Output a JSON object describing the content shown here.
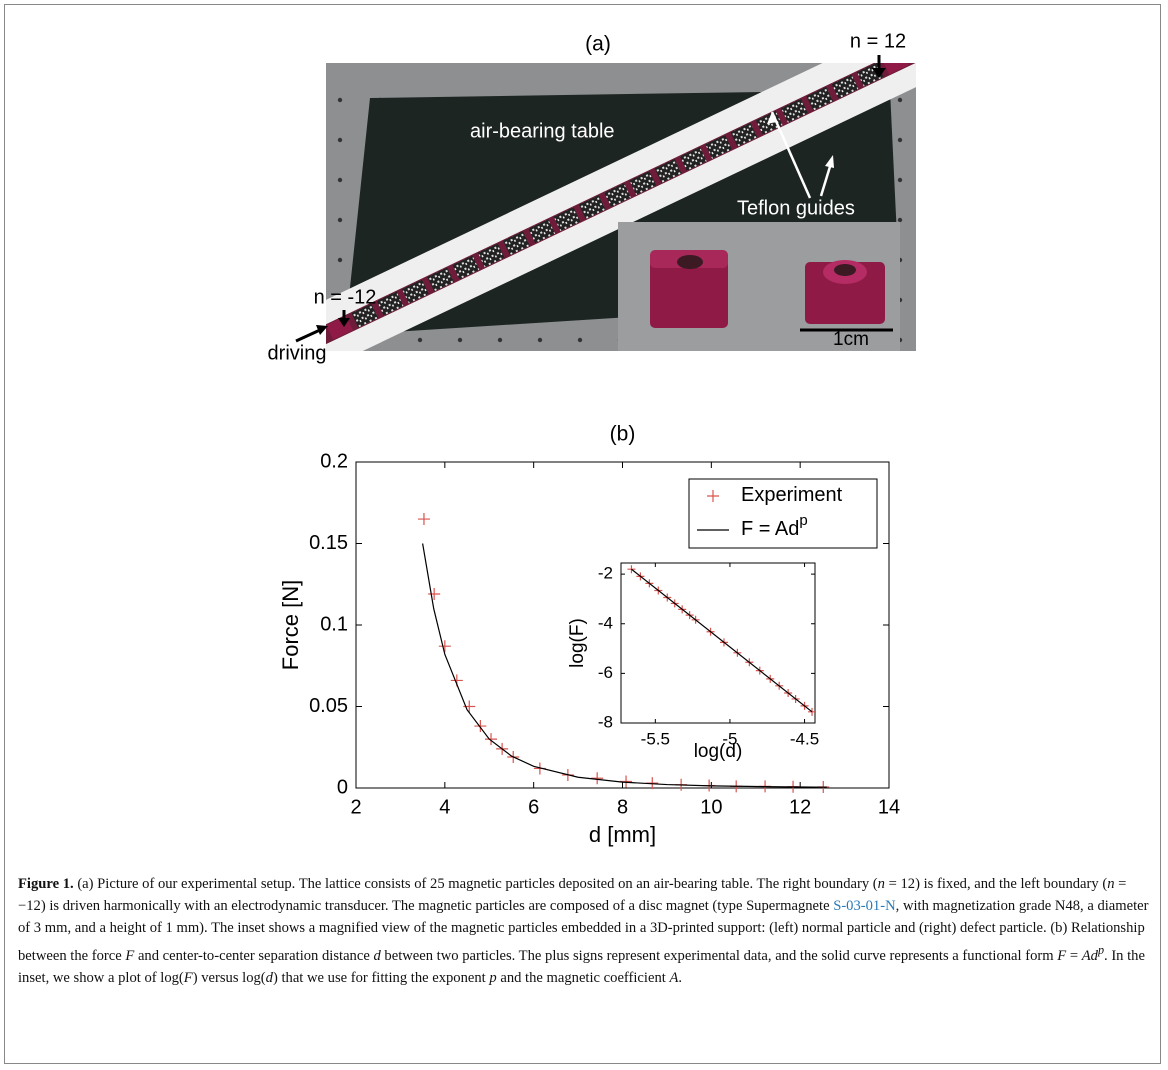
{
  "figure_a": {
    "title": "(a)",
    "labels": {
      "n_right": "n = 12",
      "table": "air-bearing table",
      "guides": "Teflon guides",
      "n_left": "n = -12",
      "driving": "driving",
      "scale": "1cm"
    }
  },
  "chart_data": [
    {
      "type": "scatter",
      "title": "(b)",
      "xlabel": "d [mm]",
      "ylabel": "Force [N]",
      "xlim": [
        2,
        14
      ],
      "xticks": [
        2,
        4,
        6,
        8,
        10,
        12,
        14
      ],
      "ylim": [
        0,
        0.2
      ],
      "yticks": [
        0,
        0.05,
        0.1,
        0.15,
        0.2
      ],
      "legend": "upper right",
      "series": [
        {
          "name": "Experiment",
          "style": "marker",
          "color": "#d9534f",
          "x": [
            3.53,
            3.76,
            4.0,
            4.27,
            4.55,
            4.8,
            5.04,
            5.29,
            5.54,
            6.14,
            6.77,
            7.43,
            8.08,
            8.67,
            9.32,
            9.95,
            10.56,
            11.21,
            11.84,
            12.52
          ],
          "values": [
            0.165,
            0.119,
            0.087,
            0.066,
            0.05,
            0.038,
            0.03,
            0.024,
            0.019,
            0.012,
            0.008,
            0.006,
            0.004,
            0.003,
            0.002,
            0.0015,
            0.001,
            0.001,
            0.0008,
            0.0006
          ]
        },
        {
          "name": "F = Ad",
          "name_superscript": "p",
          "style": "line",
          "color": "#000000",
          "x": [
            3.5,
            3.75,
            4,
            4.5,
            5,
            5.5,
            6,
            7,
            8,
            9,
            10,
            11,
            12,
            12.6
          ],
          "values": [
            0.15,
            0.11,
            0.082,
            0.048,
            0.03,
            0.0196,
            0.0133,
            0.0066,
            0.0036,
            0.0021,
            0.0013,
            0.0009,
            0.0006,
            0.0005
          ]
        }
      ]
    },
    {
      "type": "scatter",
      "xlabel": "log(d)",
      "ylabel": "log(F)",
      "xlim": [
        -5.73,
        -4.43
      ],
      "xticks": [
        -5.5,
        -5,
        -4.5
      ],
      "ylim": [
        -8,
        -1.55
      ],
      "yticks": [
        -2,
        -4,
        -6,
        -8
      ],
      "series": [
        {
          "style": "marker",
          "color": "#d9534f",
          "x": [
            -5.66,
            -5.6,
            -5.54,
            -5.48,
            -5.42,
            -5.37,
            -5.32,
            -5.27,
            -5.23,
            -5.13,
            -5.04,
            -4.95,
            -4.87,
            -4.8,
            -4.73,
            -4.67,
            -4.61,
            -4.56,
            -4.5,
            -4.45
          ],
          "values": [
            -1.8,
            -2.09,
            -2.37,
            -2.66,
            -2.94,
            -3.18,
            -3.42,
            -3.65,
            -3.84,
            -4.32,
            -4.75,
            -5.17,
            -5.55,
            -5.89,
            -6.22,
            -6.5,
            -6.79,
            -7.03,
            -7.31,
            -7.55
          ]
        },
        {
          "style": "line",
          "color": "#000000",
          "x": [
            -5.66,
            -4.45
          ],
          "values": [
            -1.8,
            -7.55
          ]
        }
      ]
    }
  ],
  "caption": {
    "parts": [
      "Figure 1.",
      " (a) Picture of our experimental setup. The lattice consists of 25 magnetic particles deposited on an air-bearing table. The right boundary (",
      "n",
      " = 12) is fixed, and the left boundary (",
      "n",
      " = −12) is driven harmonically with an electrodynamic transducer. The magnetic particles are composed of a disc magnet (type Supermagnete ",
      "S-03-01-N",
      ", with magnetization grade N48, a diameter of 3 mm, and a height of 1 mm). The inset shows a magnified view of the magnetic particles embedded in a 3D-printed support: (left) normal particle and (right) defect particle. (b) Relationship between the force ",
      "F",
      " and center-to-center separation distance ",
      "d",
      " between two particles. The plus signs represent experimental data, and the solid curve represents a functional form ",
      "F",
      " = ",
      "Ad",
      "p",
      ". In the inset, we show a plot of log(",
      "F",
      ") versus log(",
      "d",
      ") that we use for fitting the exponent ",
      "p",
      " and the magnetic coefficient ",
      "A",
      "."
    ]
  }
}
